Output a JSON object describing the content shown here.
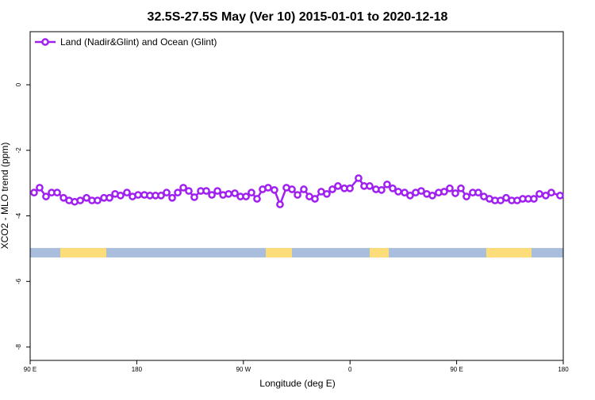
{
  "chart_data": {
    "type": "line",
    "title": "32.5S-27.5S May (Ver 10)   2015-01-01 to 2020-12-18",
    "x_label": "Longitude (deg E)",
    "y_label": "XCO2 - MLO trend (ppm)",
    "legend": "top-left",
    "xlim": [
      90,
      540
    ],
    "ylim": [
      -8.41,
      1.62
    ],
    "xticks": [
      {
        "value": 90,
        "label": "90 E"
      },
      180,
      {
        "value": 270,
        "label": "90 W"
      },
      {
        "value": 360,
        "label": "0"
      },
      {
        "value": 450,
        "label": "90 E"
      },
      {
        "value": 540,
        "label": "180"
      }
    ],
    "yticks": [
      0,
      -2,
      -4,
      -6,
      -8
    ],
    "mask_ylim": [
      -5.27,
      -4.98
    ],
    "ocean_color": "#a9bddc",
    "land_color": "#fddc7a",
    "land_segments": [
      [
        115.4,
        154.3
      ],
      [
        288.9,
        311.0
      ],
      [
        376.6,
        392.7
      ],
      [
        475.0,
        513.2
      ]
    ],
    "series": [
      {
        "name": "Land (Nadir&Glint) and Ocean (Glint)",
        "color": "#a020f0",
        "x": [
          93.3,
          98.0,
          103.4,
          108.1,
          112.8,
          118.2,
          122.9,
          127.6,
          132.3,
          137.6,
          142.2,
          146.9,
          152.3,
          157.0,
          161.7,
          166.3,
          171.7,
          176.4,
          181.1,
          186.4,
          191.1,
          195.8,
          200.5,
          205.2,
          209.9,
          214.6,
          219.3,
          223.9,
          228.6,
          234.0,
          238.7,
          243.4,
          248.1,
          252.8,
          257.5,
          262.8,
          267.5,
          272.2,
          276.8,
          281.5,
          286.2,
          290.9,
          296.2,
          300.9,
          306.3,
          311.0,
          315.7,
          321.0,
          325.7,
          330.4,
          335.7,
          340.4,
          345.1,
          349.8,
          355.2,
          359.9,
          367.2,
          371.9,
          376.6,
          381.9,
          386.6,
          391.3,
          396.0,
          400.7,
          406.1,
          410.7,
          415.4,
          420.1,
          424.8,
          429.5,
          434.8,
          439.5,
          444.2,
          448.9,
          453.6,
          458.3,
          463.6,
          468.3,
          473.0,
          477.7,
          482.4,
          487.1,
          491.8,
          496.5,
          501.1,
          505.8,
          510.5,
          515.2,
          519.9,
          525.2,
          529.9,
          537.3
        ],
        "values": [
          -3.29,
          -3.14,
          -3.41,
          -3.29,
          -3.29,
          -3.45,
          -3.53,
          -3.57,
          -3.53,
          -3.45,
          -3.53,
          -3.53,
          -3.45,
          -3.45,
          -3.33,
          -3.38,
          -3.29,
          -3.41,
          -3.36,
          -3.36,
          -3.38,
          -3.38,
          -3.38,
          -3.29,
          -3.45,
          -3.29,
          -3.14,
          -3.24,
          -3.43,
          -3.24,
          -3.24,
          -3.36,
          -3.24,
          -3.36,
          -3.33,
          -3.31,
          -3.41,
          -3.41,
          -3.29,
          -3.48,
          -3.19,
          -3.14,
          -3.21,
          -3.65,
          -3.14,
          -3.19,
          -3.36,
          -3.19,
          -3.41,
          -3.48,
          -3.26,
          -3.33,
          -3.19,
          -3.09,
          -3.16,
          -3.16,
          -2.85,
          -3.09,
          -3.09,
          -3.19,
          -3.21,
          -3.04,
          -3.16,
          -3.26,
          -3.29,
          -3.38,
          -3.29,
          -3.24,
          -3.33,
          -3.38,
          -3.29,
          -3.26,
          -3.16,
          -3.31,
          -3.16,
          -3.41,
          -3.29,
          -3.29,
          -3.41,
          -3.48,
          -3.53,
          -3.53,
          -3.45,
          -3.53,
          -3.53,
          -3.48,
          -3.48,
          -3.48,
          -3.33,
          -3.38,
          -3.29,
          -3.38
        ]
      }
    ]
  }
}
